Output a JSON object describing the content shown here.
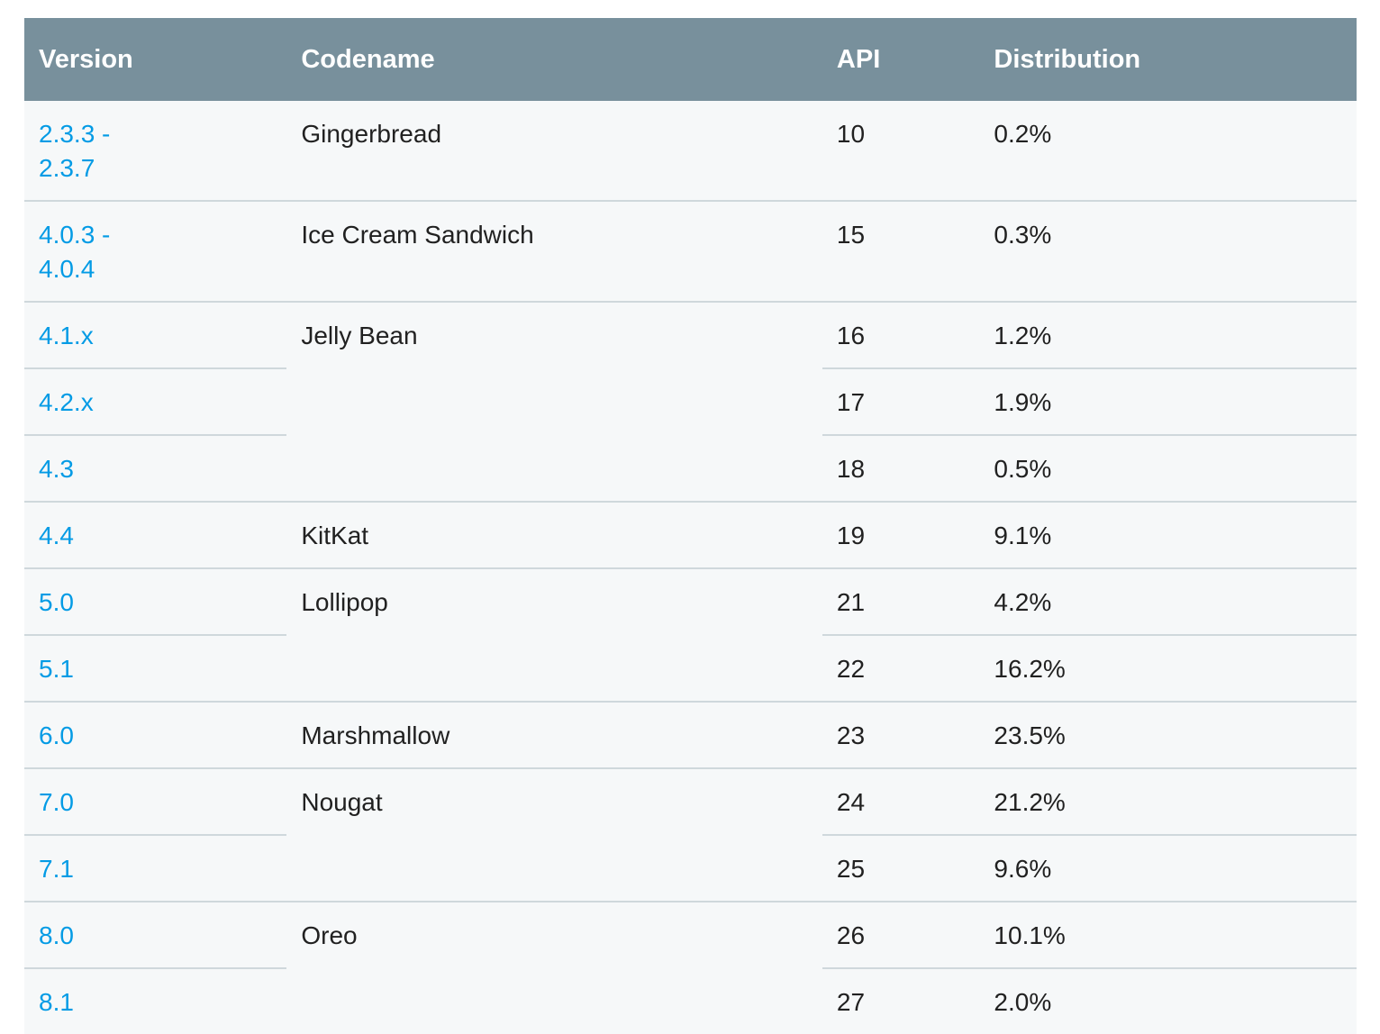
{
  "colors": {
    "header_bg": "#78909c",
    "header_text": "#ffffff",
    "row_bg": "#f6f8f9",
    "border": "#cfd8dc",
    "link": "#039be5",
    "text": "#212121",
    "page_bg": "#ffffff"
  },
  "table": {
    "columns": [
      "Version",
      "Codename",
      "API",
      "Distribution"
    ],
    "groups": [
      {
        "codename": "Gingerbread",
        "rows": [
          {
            "version": "2.3.3 -\n2.3.7",
            "api": "10",
            "distribution": "0.2%"
          }
        ]
      },
      {
        "codename": "Ice Cream Sandwich",
        "rows": [
          {
            "version": "4.0.3 -\n4.0.4",
            "api": "15",
            "distribution": "0.3%"
          }
        ]
      },
      {
        "codename": "Jelly Bean",
        "rows": [
          {
            "version": "4.1.x",
            "api": "16",
            "distribution": "1.2%"
          },
          {
            "version": "4.2.x",
            "api": "17",
            "distribution": "1.9%"
          },
          {
            "version": "4.3",
            "api": "18",
            "distribution": "0.5%"
          }
        ]
      },
      {
        "codename": "KitKat",
        "rows": [
          {
            "version": "4.4",
            "api": "19",
            "distribution": "9.1%"
          }
        ]
      },
      {
        "codename": "Lollipop",
        "rows": [
          {
            "version": "5.0",
            "api": "21",
            "distribution": "4.2%"
          },
          {
            "version": "5.1",
            "api": "22",
            "distribution": "16.2%"
          }
        ]
      },
      {
        "codename": "Marshmallow",
        "rows": [
          {
            "version": "6.0",
            "api": "23",
            "distribution": "23.5%"
          }
        ]
      },
      {
        "codename": "Nougat",
        "rows": [
          {
            "version": "7.0",
            "api": "24",
            "distribution": "21.2%"
          },
          {
            "version": "7.1",
            "api": "25",
            "distribution": "9.6%"
          }
        ]
      },
      {
        "codename": "Oreo",
        "rows": [
          {
            "version": "8.0",
            "api": "26",
            "distribution": "10.1%"
          },
          {
            "version": "8.1",
            "api": "27",
            "distribution": "2.0%"
          }
        ]
      }
    ]
  },
  "chart_data": {
    "type": "table",
    "columns": [
      "Version",
      "Codename",
      "API",
      "Distribution"
    ],
    "rows": [
      [
        "2.3.3 - 2.3.7",
        "Gingerbread",
        10,
        "0.2%"
      ],
      [
        "4.0.3 - 4.0.4",
        "Ice Cream Sandwich",
        15,
        "0.3%"
      ],
      [
        "4.1.x",
        "Jelly Bean",
        16,
        "1.2%"
      ],
      [
        "4.2.x",
        "Jelly Bean",
        17,
        "1.9%"
      ],
      [
        "4.3",
        "Jelly Bean",
        18,
        "0.5%"
      ],
      [
        "4.4",
        "KitKat",
        19,
        "9.1%"
      ],
      [
        "5.0",
        "Lollipop",
        21,
        "4.2%"
      ],
      [
        "5.1",
        "Lollipop",
        22,
        "16.2%"
      ],
      [
        "6.0",
        "Marshmallow",
        23,
        "23.5%"
      ],
      [
        "7.0",
        "Nougat",
        24,
        "21.2%"
      ],
      [
        "7.1",
        "Nougat",
        25,
        "9.6%"
      ],
      [
        "8.0",
        "Oreo",
        26,
        "10.1%"
      ],
      [
        "8.1",
        "Oreo",
        27,
        "2.0%"
      ]
    ]
  }
}
